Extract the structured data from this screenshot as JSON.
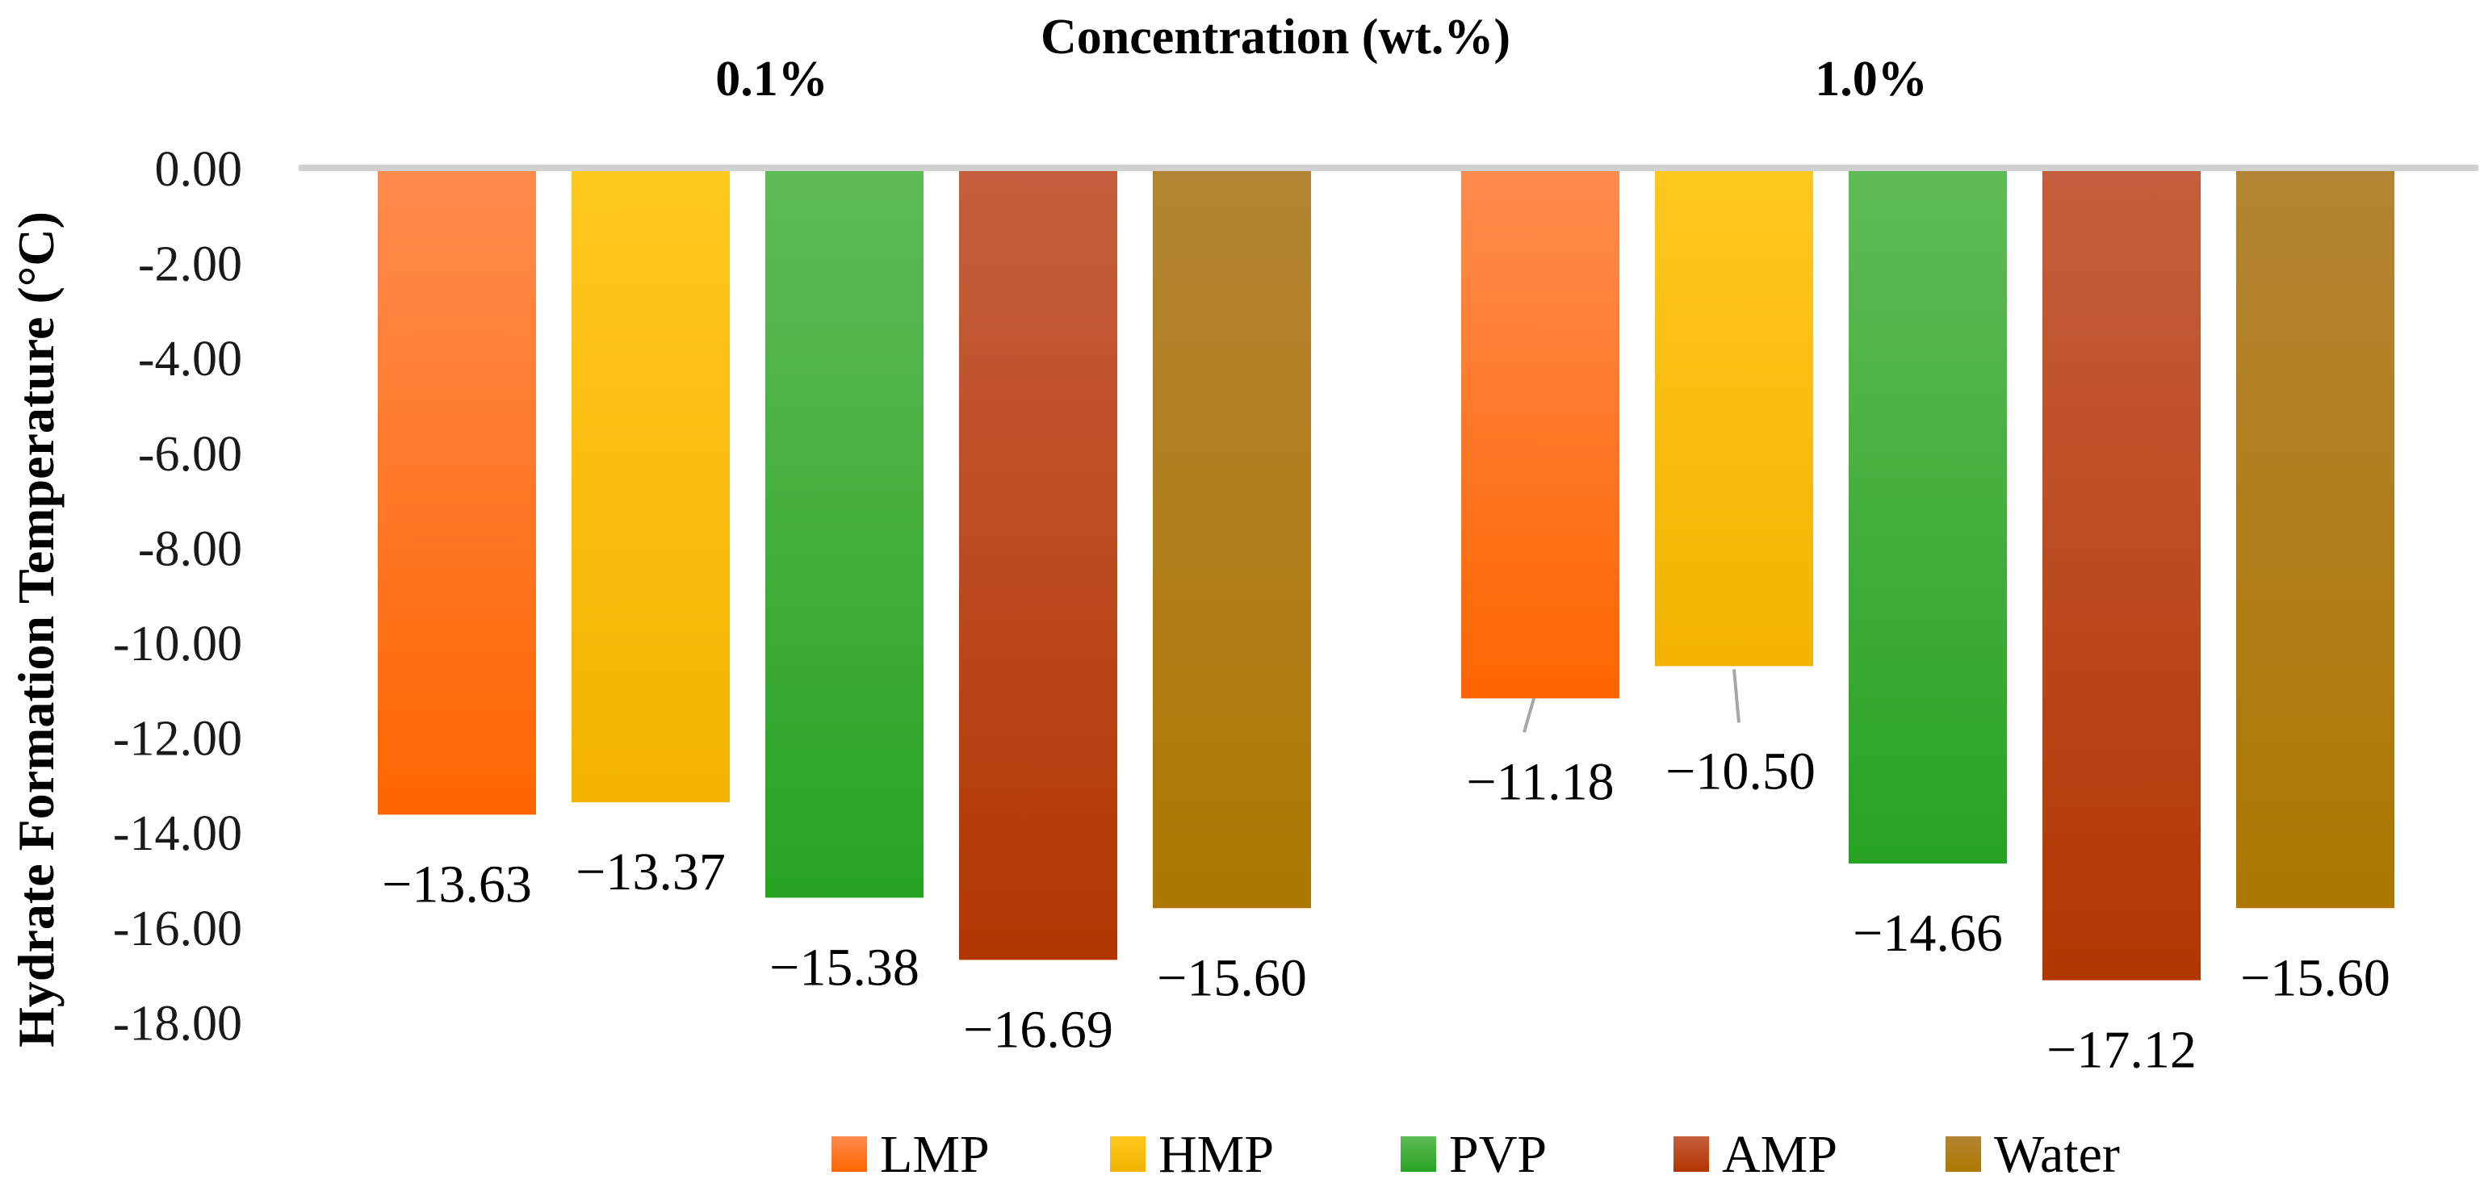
{
  "chart_data": {
    "type": "bar",
    "title": "Concentration (wt.%)",
    "ylabel": "Hydrate Formation Temperature (°C)",
    "xlabel": "",
    "ylim": [
      -18,
      0
    ],
    "yticks": [
      0,
      -2,
      -4,
      -6,
      -8,
      -10,
      -12,
      -14,
      -16,
      -18
    ],
    "ytick_labels": [
      "0.00",
      "-2.00",
      "-4.00",
      "-6.00",
      "-8.00",
      "-10.00",
      "-12.00",
      "-14.00",
      "-16.00",
      "-18.00"
    ],
    "categories": [
      "0.1%",
      "1.0%"
    ],
    "series": [
      {
        "name": "LMP",
        "color_top": "#ff8b4d",
        "color_bottom": "#ff6500",
        "values": [
          -13.63,
          -11.18
        ],
        "labels": [
          "−13.63",
          "−11.18"
        ]
      },
      {
        "name": "HMP",
        "color_top": "#ffc81e",
        "color_bottom": "#f2b300",
        "values": [
          -13.37,
          -10.5
        ],
        "labels": [
          "−13.37",
          "−10.50"
        ]
      },
      {
        "name": "PVP",
        "color_top": "#5fbb57",
        "color_bottom": "#27a322",
        "values": [
          -15.38,
          -14.66
        ],
        "labels": [
          "−15.38",
          "−14.66"
        ]
      },
      {
        "name": "AMP",
        "color_top": "#c55e3e",
        "color_bottom": "#b23600",
        "values": [
          -16.69,
          -17.12
        ],
        "labels": [
          "−16.69",
          "−17.12"
        ]
      },
      {
        "name": "Water",
        "color_top": "#b38433",
        "color_bottom": "#ad7800",
        "values": [
          -15.6,
          -15.6
        ],
        "labels": [
          "−15.60",
          "−15.60"
        ]
      }
    ],
    "legend_position": "bottom",
    "grid": false
  }
}
